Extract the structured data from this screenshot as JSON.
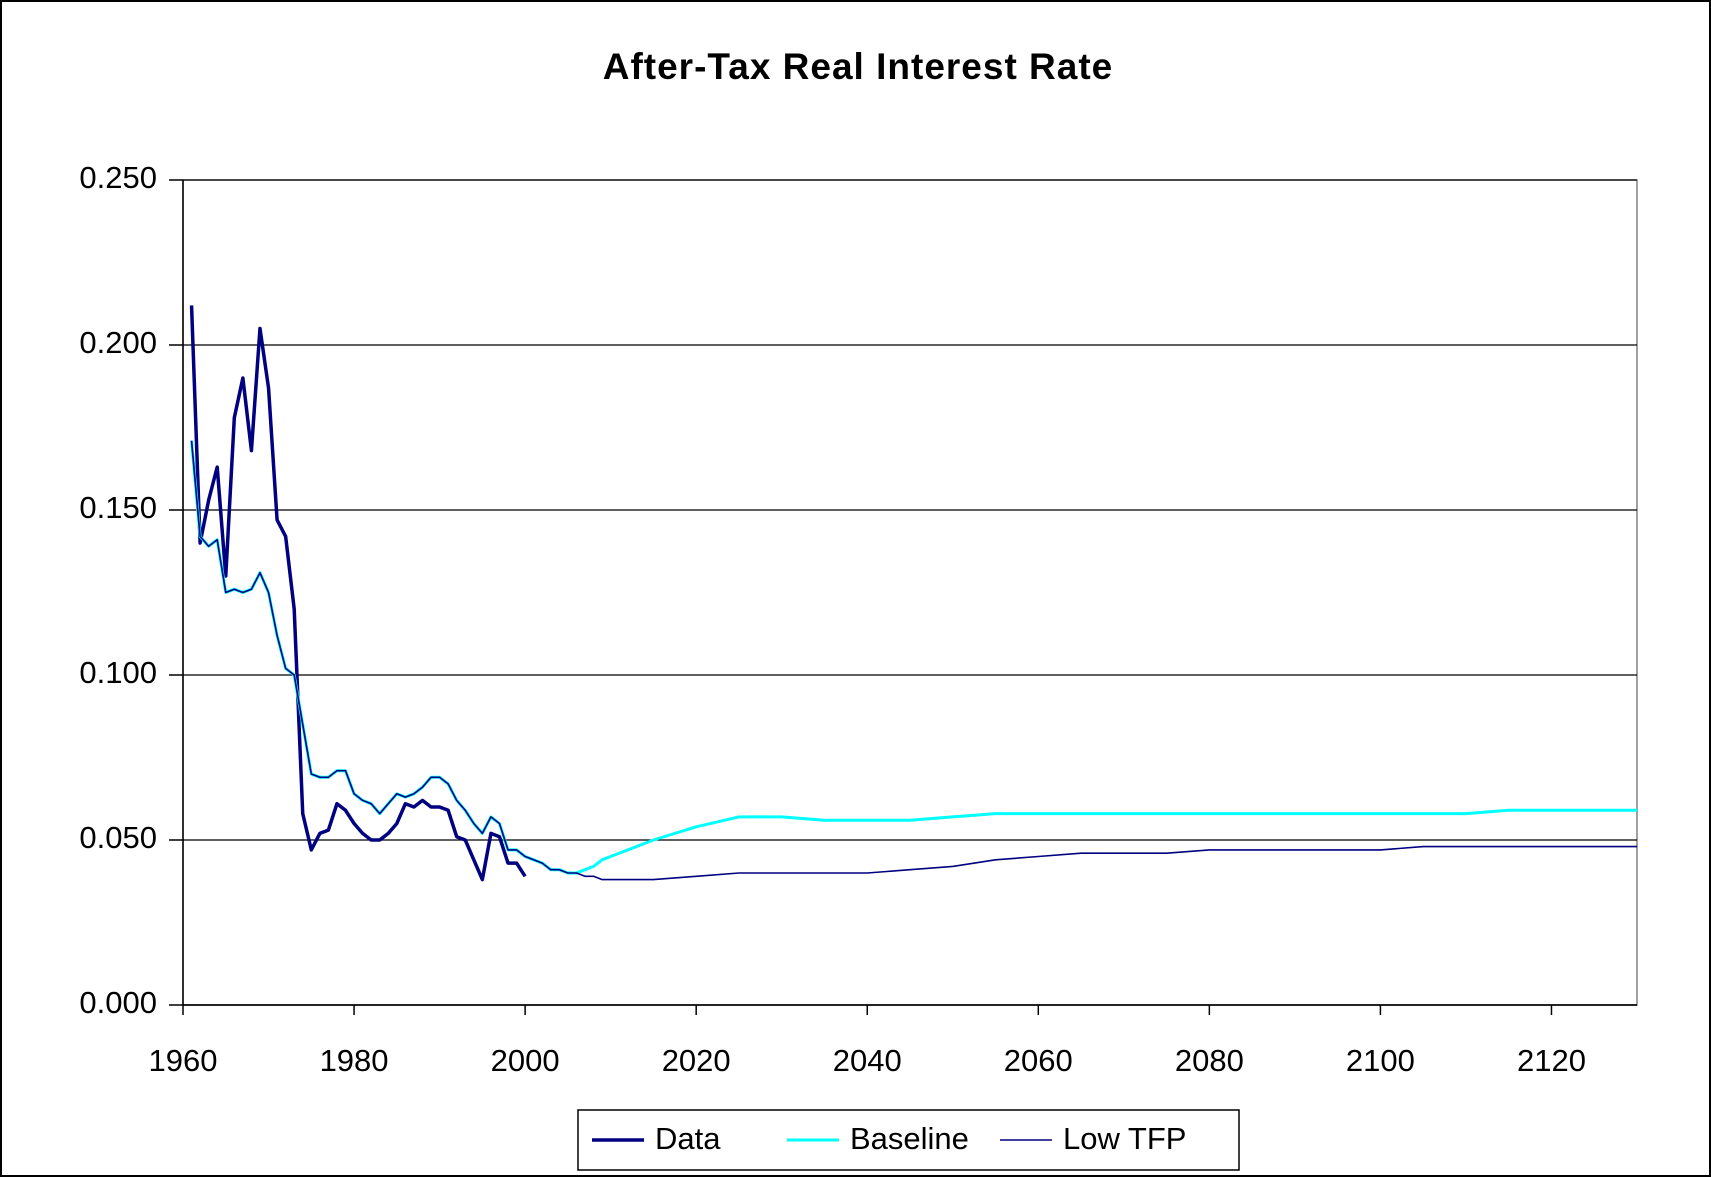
{
  "chart_data": {
    "type": "line",
    "title": "After-Tax Real Interest Rate",
    "x": [
      1961,
      1962,
      1963,
      1964,
      1965,
      1966,
      1967,
      1968,
      1969,
      1970,
      1971,
      1972,
      1973,
      1974,
      1975,
      1976,
      1977,
      1978,
      1979,
      1980,
      1981,
      1982,
      1983,
      1984,
      1985,
      1986,
      1987,
      1988,
      1989,
      1990,
      1991,
      1992,
      1993,
      1994,
      1995,
      1996,
      1997,
      1998,
      1999,
      2000,
      2001,
      2002,
      2003,
      2004,
      2005,
      2006,
      2007,
      2008,
      2009,
      2010,
      2015,
      2020,
      2025,
      2030,
      2035,
      2040,
      2045,
      2050,
      2055,
      2060,
      2065,
      2070,
      2075,
      2080,
      2085,
      2090,
      2095,
      2100,
      2105,
      2110,
      2115,
      2120,
      2125,
      2130
    ],
    "series": [
      {
        "name": "Data",
        "color": "#000080",
        "values": [
          0.212,
          0.14,
          0.153,
          0.163,
          0.13,
          0.178,
          0.19,
          0.168,
          0.205,
          0.187,
          0.147,
          0.142,
          0.12,
          0.058,
          0.047,
          0.052,
          0.053,
          0.061,
          0.059,
          0.055,
          0.052,
          0.05,
          0.05,
          0.052,
          0.055,
          0.061,
          0.06,
          0.062,
          0.06,
          0.06,
          0.059,
          0.051,
          0.05,
          0.044,
          0.038,
          0.052,
          0.051,
          0.043,
          0.043,
          0.039,
          null,
          null,
          null,
          null,
          null,
          null,
          null,
          null,
          null,
          null,
          null,
          null,
          null,
          null,
          null,
          null,
          null,
          null,
          null,
          null,
          null,
          null,
          null,
          null,
          null,
          null,
          null,
          null,
          null,
          null,
          null,
          null,
          null,
          null
        ]
      },
      {
        "name": "Baseline",
        "color": "#00ffff",
        "values": [
          0.171,
          0.142,
          0.139,
          0.141,
          0.125,
          0.126,
          0.125,
          0.126,
          0.131,
          0.125,
          0.112,
          0.102,
          0.1,
          0.085,
          0.07,
          0.069,
          0.069,
          0.071,
          0.071,
          0.064,
          0.062,
          0.061,
          0.058,
          0.061,
          0.064,
          0.063,
          0.064,
          0.066,
          0.069,
          0.069,
          0.067,
          0.062,
          0.059,
          0.055,
          0.052,
          0.057,
          0.055,
          0.047,
          0.047,
          0.045,
          0.044,
          0.043,
          0.041,
          0.041,
          0.04,
          0.04,
          0.041,
          0.042,
          0.044,
          0.045,
          0.05,
          0.054,
          0.057,
          0.057,
          0.056,
          0.056,
          0.056,
          0.057,
          0.058,
          0.058,
          0.058,
          0.058,
          0.058,
          0.058,
          0.058,
          0.058,
          0.058,
          0.058,
          0.058,
          0.058,
          0.059,
          0.059,
          0.059,
          0.059
        ]
      },
      {
        "name": "Low TFP",
        "color": "#000080",
        "values": [
          0.171,
          0.142,
          0.139,
          0.141,
          0.125,
          0.126,
          0.125,
          0.126,
          0.131,
          0.125,
          0.112,
          0.102,
          0.1,
          0.085,
          0.07,
          0.069,
          0.069,
          0.071,
          0.071,
          0.064,
          0.062,
          0.061,
          0.058,
          0.061,
          0.064,
          0.063,
          0.064,
          0.066,
          0.069,
          0.069,
          0.067,
          0.062,
          0.059,
          0.055,
          0.052,
          0.057,
          0.055,
          0.047,
          0.047,
          0.045,
          0.044,
          0.043,
          0.041,
          0.041,
          0.04,
          0.04,
          0.039,
          0.039,
          0.038,
          0.038,
          0.038,
          0.039,
          0.04,
          0.04,
          0.04,
          0.04,
          0.041,
          0.042,
          0.044,
          0.045,
          0.046,
          0.046,
          0.046,
          0.047,
          0.047,
          0.047,
          0.047,
          0.047,
          0.048,
          0.048,
          0.048,
          0.048,
          0.048,
          0.048
        ]
      }
    ],
    "xlim": [
      1960,
      2130
    ],
    "xticks": [
      1960,
      1980,
      2000,
      2020,
      2040,
      2060,
      2080,
      2100,
      2120
    ],
    "ylim": [
      0,
      0.25
    ],
    "yticks": [
      {
        "value": 0,
        "label": "0.000"
      },
      {
        "value": 0.05,
        "label": "0.050"
      },
      {
        "value": 0.1,
        "label": "0.100"
      },
      {
        "value": 0.15,
        "label": "0.150"
      },
      {
        "value": 0.2,
        "label": "0.200"
      },
      {
        "value": 0.25,
        "label": "0.250"
      }
    ],
    "grid": true,
    "legend": "bottom"
  }
}
